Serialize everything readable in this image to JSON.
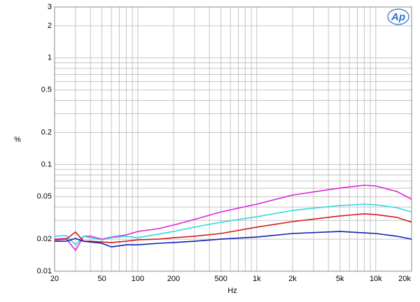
{
  "chart_data": {
    "type": "line",
    "x_label": "Hz",
    "y_label": "%",
    "logo": "Ap",
    "log_x": true,
    "log_y": true,
    "grid": true,
    "xlim": [
      20,
      20000
    ],
    "ylim": [
      0.01,
      3
    ],
    "xticks": [
      20,
      50,
      100,
      200,
      500,
      {
        "value": 1000,
        "label": "1k"
      },
      {
        "value": 2000,
        "label": "2k"
      },
      {
        "value": 5000,
        "label": "5k"
      },
      {
        "value": 10000,
        "label": "10k"
      },
      {
        "value": 20000,
        "label": "20k"
      }
    ],
    "xminor": [
      30,
      40,
      60,
      70,
      80,
      90,
      300,
      400,
      600,
      700,
      800,
      900,
      3000,
      4000,
      6000,
      7000,
      8000,
      9000
    ],
    "yticks": [
      0.01,
      0.02,
      0.05,
      0.1,
      0.2,
      0.5,
      1,
      2,
      3
    ],
    "yminor": [
      0.03,
      0.04,
      0.06,
      0.07,
      0.08,
      0.09,
      0.3,
      0.4,
      0.6,
      0.7,
      0.8,
      0.9
    ],
    "x": [
      20,
      25,
      30,
      35,
      40,
      50,
      60,
      80,
      100,
      150,
      200,
      300,
      500,
      1000,
      2000,
      5000,
      8000,
      10000,
      15000,
      20000
    ],
    "series": [
      {
        "color": "#e020e0",
        "values": [
          0.02,
          0.0203,
          0.0157,
          0.0213,
          0.0213,
          0.02,
          0.0209,
          0.0219,
          0.0236,
          0.0251,
          0.0271,
          0.0306,
          0.036,
          0.0426,
          0.0518,
          0.0603,
          0.064,
          0.063,
          0.0559,
          0.0474
        ]
      },
      {
        "color": "#30d8e0",
        "values": [
          0.0213,
          0.0216,
          0.0177,
          0.0213,
          0.0206,
          0.0197,
          0.0206,
          0.0213,
          0.0206,
          0.0223,
          0.0236,
          0.0259,
          0.0288,
          0.0324,
          0.0372,
          0.0413,
          0.0426,
          0.042,
          0.0394,
          0.036
        ]
      },
      {
        "color": "#d81818",
        "values": [
          0.0197,
          0.02,
          0.0233,
          0.0191,
          0.0191,
          0.0188,
          0.0186,
          0.0191,
          0.0197,
          0.02,
          0.0206,
          0.0213,
          0.0226,
          0.0259,
          0.0292,
          0.033,
          0.0345,
          0.034,
          0.032,
          0.0288
        ]
      },
      {
        "color": "#1020b0",
        "values": [
          0.0191,
          0.0191,
          0.0203,
          0.0191,
          0.0188,
          0.0183,
          0.0169,
          0.0177,
          0.0177,
          0.0183,
          0.0186,
          0.0191,
          0.02,
          0.0209,
          0.0226,
          0.0236,
          0.0229,
          0.0226,
          0.0213,
          0.02
        ]
      }
    ]
  }
}
